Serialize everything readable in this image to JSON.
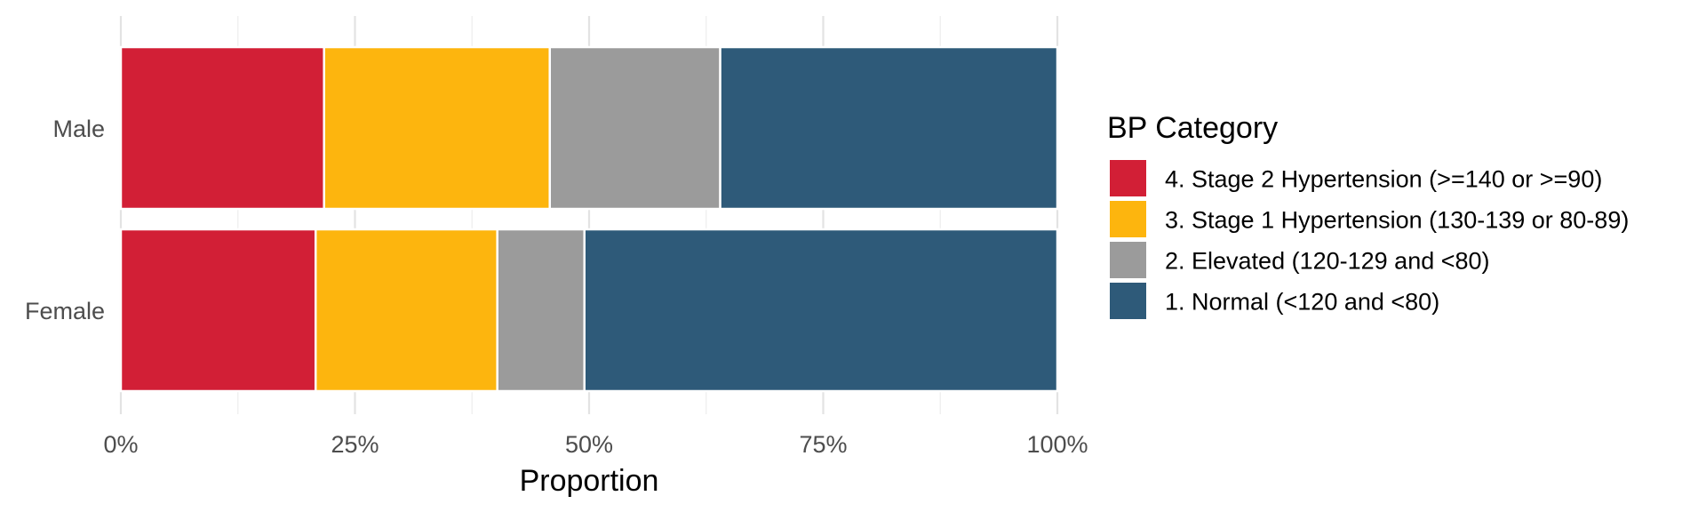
{
  "chart_data": {
    "type": "bar",
    "orientation": "horizontal",
    "stacked": "percent",
    "categories": [
      "Male",
      "Female"
    ],
    "series": [
      {
        "name": "4. Stage 2 Hypertension (>=140 or >=90)",
        "values": [
          0.217,
          0.208
        ],
        "color": "#D21F36"
      },
      {
        "name": "3. Stage 1 Hypertension (130-139 or 80-89)",
        "values": [
          0.241,
          0.194
        ],
        "color": "#FDB50E"
      },
      {
        "name": "2. Elevated (120-129 and <80)",
        "values": [
          0.182,
          0.093
        ],
        "color": "#9B9B9B"
      },
      {
        "name": "1. Normal (<120 and <80)",
        "values": [
          0.36,
          0.505
        ],
        "color": "#2E5A79"
      }
    ],
    "xlabel": "Proportion",
    "ylabel": "",
    "xlim": [
      0,
      1
    ],
    "xticks": [
      0,
      0.25,
      0.5,
      0.75,
      1.0
    ],
    "xtick_labels": [
      "0%",
      "25%",
      "50%",
      "75%",
      "100%"
    ],
    "grid": true,
    "legend": {
      "title": "BP Category",
      "placement": "right"
    }
  }
}
